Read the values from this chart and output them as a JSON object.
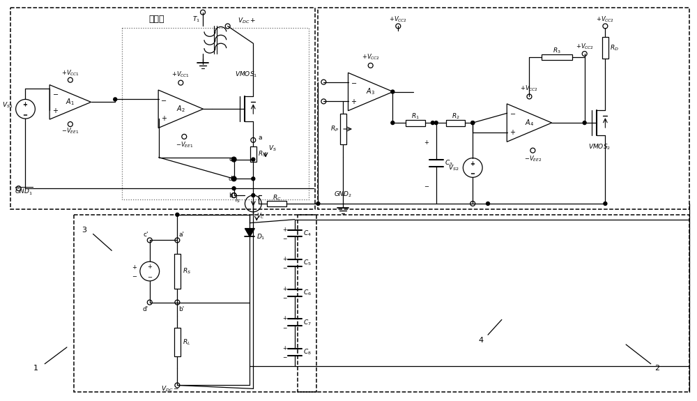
{
  "bg_color": "#ffffff",
  "line_color": "#000000",
  "figsize": [
    10.0,
    5.75
  ],
  "dpi": 100,
  "labels": {
    "main_power": "主电源",
    "A1": "A$_1$",
    "A2": "A$_2$",
    "A3": "A$_3$",
    "A4": "A$_4$",
    "VMOS1": "VMOS$_1$",
    "VMOS2": "VMOS$_2$",
    "box1": "1",
    "box2": "2",
    "box3": "3",
    "box4": "4"
  }
}
